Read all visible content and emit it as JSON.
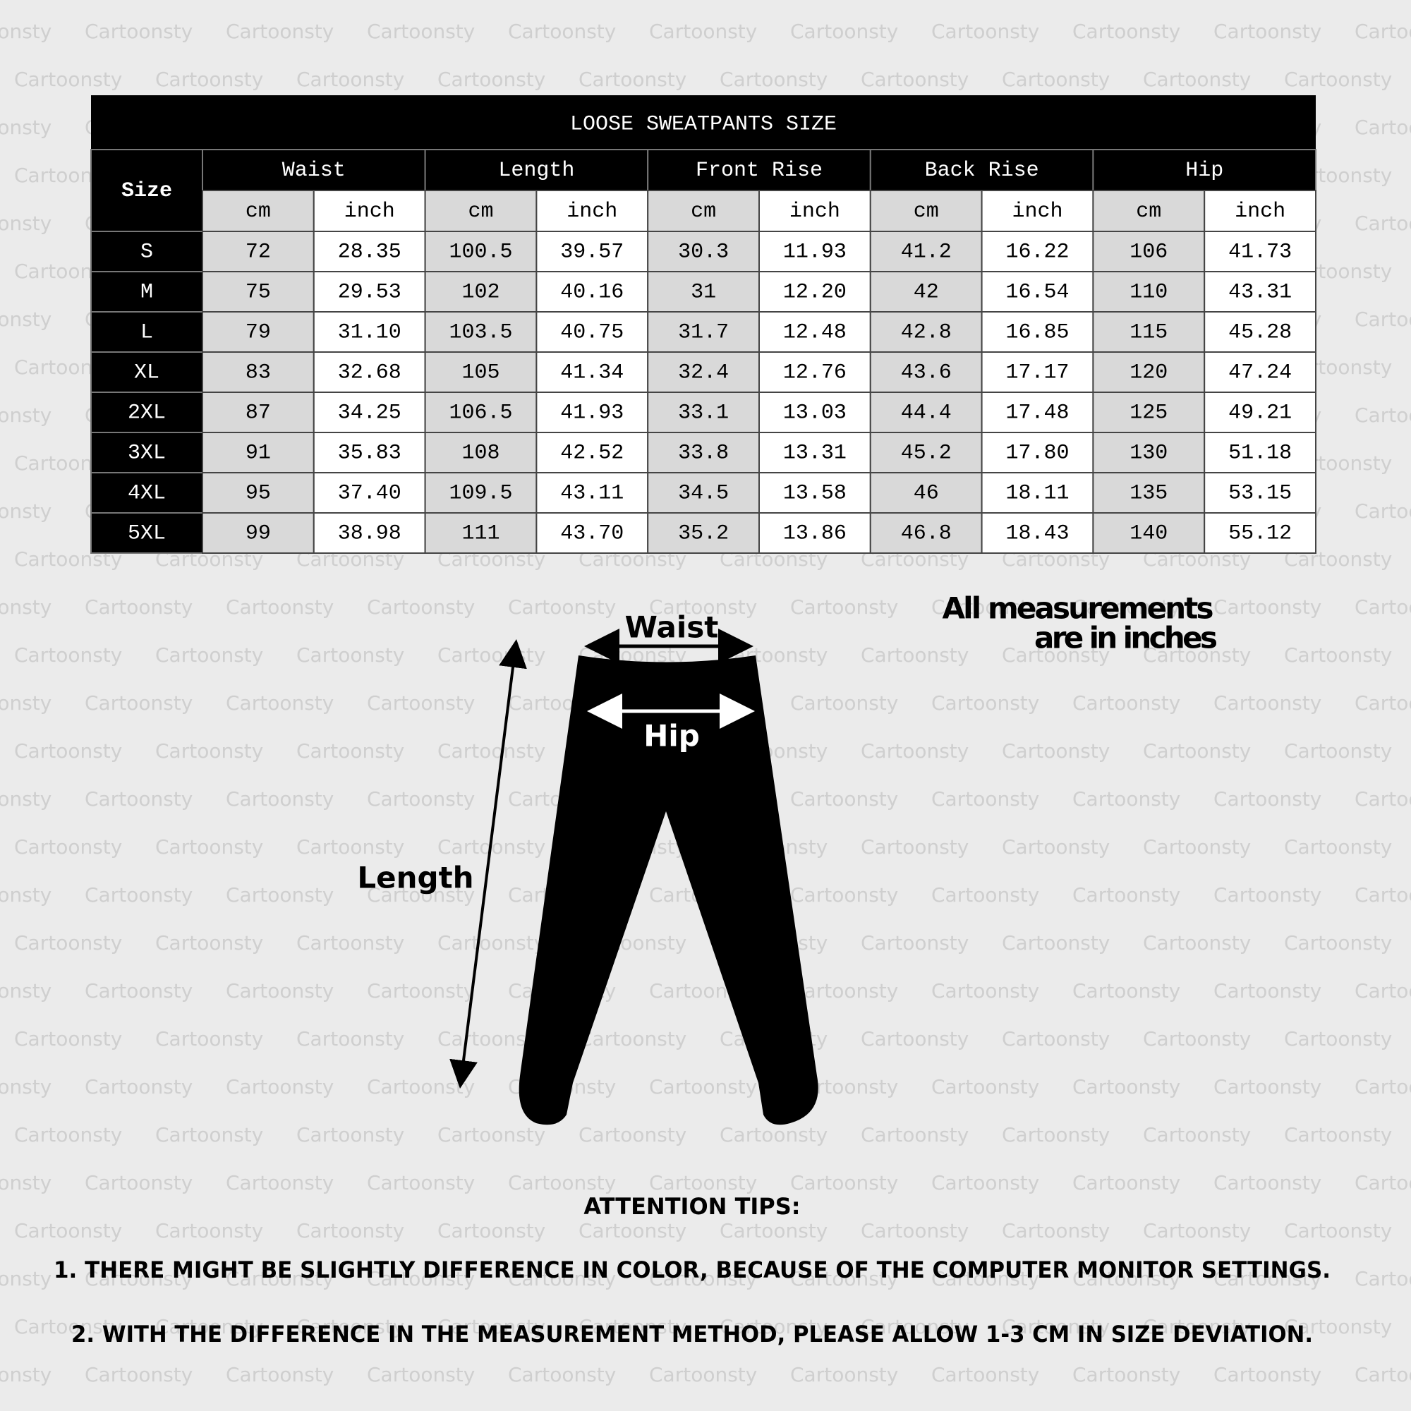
{
  "watermark": "Cartoonsty",
  "table": {
    "title": "LOOSE SWEATPANTS SIZE",
    "size_header": "Size",
    "groups": [
      "Waist",
      "Length",
      "Front Rise",
      "Back Rise",
      "Hip"
    ],
    "units": [
      "cm",
      "inch"
    ],
    "rows": [
      {
        "size": "S",
        "values": [
          "72",
          "28.35",
          "100.5",
          "39.57",
          "30.3",
          "11.93",
          "41.2",
          "16.22",
          "106",
          "41.73"
        ]
      },
      {
        "size": "M",
        "values": [
          "75",
          "29.53",
          "102",
          "40.16",
          "31",
          "12.20",
          "42",
          "16.54",
          "110",
          "43.31"
        ]
      },
      {
        "size": "L",
        "values": [
          "79",
          "31.10",
          "103.5",
          "40.75",
          "31.7",
          "12.48",
          "42.8",
          "16.85",
          "115",
          "45.28"
        ]
      },
      {
        "size": "XL",
        "values": [
          "83",
          "32.68",
          "105",
          "41.34",
          "32.4",
          "12.76",
          "43.6",
          "17.17",
          "120",
          "47.24"
        ]
      },
      {
        "size": "2XL",
        "values": [
          "87",
          "34.25",
          "106.5",
          "41.93",
          "33.1",
          "13.03",
          "44.4",
          "17.48",
          "125",
          "49.21"
        ]
      },
      {
        "size": "3XL",
        "values": [
          "91",
          "35.83",
          "108",
          "42.52",
          "33.8",
          "13.31",
          "45.2",
          "17.80",
          "130",
          "51.18"
        ]
      },
      {
        "size": "4XL",
        "values": [
          "95",
          "37.40",
          "109.5",
          "43.11",
          "34.5",
          "13.58",
          "46",
          "18.11",
          "135",
          "53.15"
        ]
      },
      {
        "size": "5XL",
        "values": [
          "99",
          "38.98",
          "111",
          "43.70",
          "35.2",
          "13.86",
          "46.8",
          "18.43",
          "140",
          "55.12"
        ]
      }
    ]
  },
  "diagram": {
    "waist": "Waist",
    "hip": "Hip",
    "length": "Length",
    "note": [
      "All measurements",
      "are in inches"
    ]
  },
  "tips": {
    "heading": "ATTENTION TIPS:",
    "items": [
      "1. THERE MIGHT BE SLIGHTLY DIFFERENCE IN COLOR, BECAUSE OF THE COMPUTER MONITOR SETTINGS.",
      "2. WITH THE DIFFERENCE IN THE MEASUREMENT METHOD, PLEASE ALLOW 1-3 CM IN SIZE DEVIATION."
    ]
  }
}
